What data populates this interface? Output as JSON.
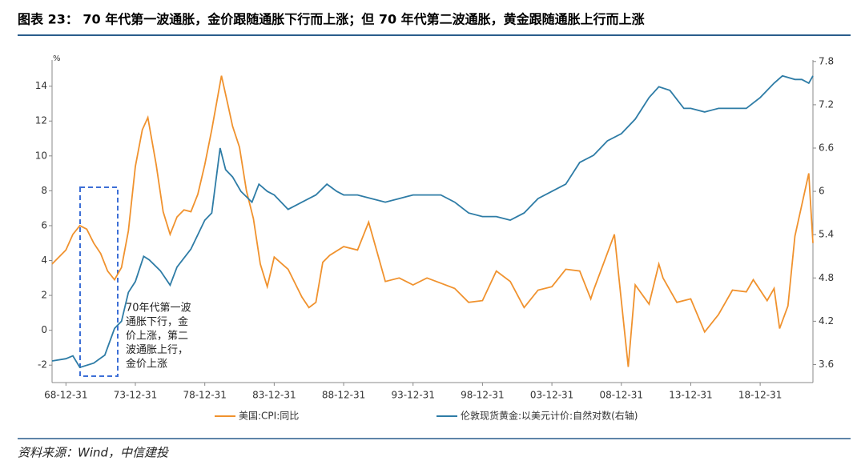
{
  "chart_data": {
    "type": "line",
    "title": "图表 23：  70 年代第一波通胀，金价跟随通胀下行而上涨；但 70 年代第二波通胀，黄金跟随通胀上行而上涨",
    "source": "资料来源：Wind，中信建投",
    "y_unit": "%",
    "annotations": [
      "70年代第一波",
      "通胀下行，金",
      "价上涨，第二",
      "波通胀上行，",
      "金价上涨"
    ],
    "xlim": [
      1968,
      2022.8
    ],
    "xticks": [
      {
        "value": 1969,
        "label": "68-12-31"
      },
      {
        "value": 1974,
        "label": "73-12-31"
      },
      {
        "value": 1979,
        "label": "78-12-31"
      },
      {
        "value": 1984,
        "label": "83-12-31"
      },
      {
        "value": 1989,
        "label": "88-12-31"
      },
      {
        "value": 1994,
        "label": "93-12-31"
      },
      {
        "value": 1999,
        "label": "98-12-31"
      },
      {
        "value": 2004,
        "label": "03-12-31"
      },
      {
        "value": 2009,
        "label": "08-12-31"
      },
      {
        "value": 2014,
        "label": "13-12-31"
      },
      {
        "value": 2019,
        "label": "18-12-31"
      }
    ],
    "ylim": [
      -3,
      15.5
    ],
    "yticks": [
      -2,
      0,
      2,
      4,
      6,
      8,
      10,
      12,
      14
    ],
    "y2lim": [
      3.35,
      7.82
    ],
    "y2ticks": [
      3.6,
      4.2,
      4.8,
      5.4,
      6.0,
      6.6,
      7.2,
      7.8
    ],
    "series": [
      {
        "name": "美国:CPI:同比",
        "color": "#f0922e",
        "x": [
          1968.0,
          1969,
          1969.5,
          1970,
          1970.5,
          1971,
          1971.5,
          1972,
          1972.5,
          1973,
          1973.5,
          1974,
          1974.5,
          1974.9,
          1975.5,
          1976,
          1976.5,
          1977,
          1977.5,
          1978,
          1978.5,
          1979,
          1979.5,
          1980.2,
          1980.7,
          1981,
          1981.5,
          1982,
          1982.5,
          1983,
          1983.5,
          1984,
          1985,
          1986,
          1986.5,
          1987,
          1987.5,
          1988,
          1989,
          1990,
          1990.8,
          1991.3,
          1992,
          1993,
          1994,
          1995,
          1996,
          1997,
          1998,
          1999,
          2000,
          2001,
          2002,
          2003,
          2004,
          2005,
          2006,
          2006.8,
          2007,
          2008.5,
          2009.5,
          2010,
          2011,
          2011.7,
          2012,
          2013,
          2014,
          2015,
          2016,
          2017,
          2018,
          2018.5,
          2019.5,
          2020,
          2020.4,
          2021,
          2021.5,
          2022.5,
          2022.8
        ],
        "values": [
          3.8,
          4.6,
          5.5,
          6.0,
          5.8,
          5.0,
          4.4,
          3.4,
          2.9,
          3.6,
          5.7,
          9.4,
          11.5,
          12.2,
          9.5,
          6.8,
          5.5,
          6.5,
          6.9,
          6.8,
          7.8,
          9.5,
          11.5,
          14.6,
          12.8,
          11.7,
          10.5,
          8.0,
          6.4,
          3.8,
          2.5,
          4.2,
          3.5,
          1.9,
          1.3,
          1.6,
          3.9,
          4.3,
          4.8,
          4.6,
          6.2,
          4.8,
          2.8,
          3.0,
          2.6,
          3.0,
          2.7,
          2.4,
          1.6,
          1.7,
          3.4,
          2.8,
          1.3,
          2.3,
          2.5,
          3.5,
          3.4,
          1.8,
          2.3,
          5.5,
          -2.1,
          2.6,
          1.5,
          3.8,
          3.0,
          1.6,
          1.8,
          -0.1,
          0.9,
          2.3,
          2.2,
          2.9,
          1.7,
          2.4,
          0.1,
          1.4,
          5.4,
          9.0,
          5.0
        ]
      },
      {
        "name": "伦敦现货黄金:以美元计价:自然对数(右轴)",
        "color": "#2e7ca6",
        "axis": "y2",
        "x": [
          1968.0,
          1969,
          1969.5,
          1970,
          1971,
          1971.8,
          1972.5,
          1973,
          1973.5,
          1974,
          1974.6,
          1975,
          1975.8,
          1976.5,
          1977,
          1978,
          1979,
          1979.5,
          1980.1,
          1980.5,
          1981,
          1981.6,
          1982.4,
          1982.9,
          1983.5,
          1984,
          1985,
          1986,
          1987,
          1987.8,
          1988.5,
          1989,
          1990,
          1991,
          1992,
          1993,
          1994,
          1995,
          1996,
          1997,
          1998,
          1999,
          2000,
          2001,
          2002,
          2003,
          2004,
          2005,
          2006,
          2007,
          2008,
          2009,
          2010,
          2011,
          2011.7,
          2012.5,
          2013.5,
          2014,
          2015,
          2016,
          2017,
          2018,
          2019,
          2020,
          2020.6,
          2021.5,
          2022,
          2022.5,
          2022.8
        ],
        "values": [
          3.65,
          3.68,
          3.72,
          3.56,
          3.62,
          3.73,
          4.1,
          4.2,
          4.6,
          4.75,
          5.1,
          5.05,
          4.9,
          4.7,
          4.95,
          5.2,
          5.6,
          5.7,
          6.6,
          6.3,
          6.2,
          6.0,
          5.85,
          6.1,
          6.0,
          5.95,
          5.75,
          5.85,
          5.95,
          6.1,
          6.0,
          5.95,
          5.95,
          5.9,
          5.85,
          5.9,
          5.95,
          5.95,
          5.95,
          5.85,
          5.7,
          5.65,
          5.65,
          5.6,
          5.7,
          5.9,
          6.0,
          6.1,
          6.4,
          6.5,
          6.7,
          6.8,
          7.0,
          7.3,
          7.45,
          7.4,
          7.15,
          7.15,
          7.1,
          7.15,
          7.15,
          7.15,
          7.3,
          7.5,
          7.6,
          7.55,
          7.55,
          7.5,
          7.6
        ]
      }
    ]
  }
}
